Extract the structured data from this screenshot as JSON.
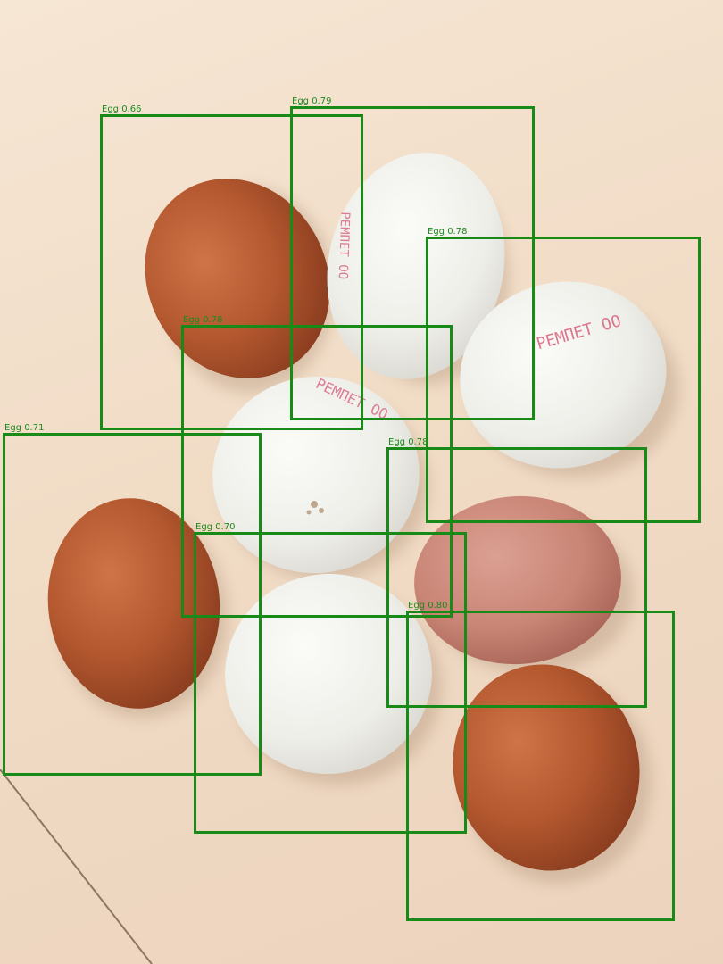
{
  "photo": {
    "subject": "eggs",
    "surface_color": "#f1dcc6"
  },
  "stamp": {
    "text": "ΡΕΜΠΕΤ ΟΟ"
  },
  "detections": [
    {
      "label": "Egg 0.66"
    },
    {
      "label": "Egg 0.79"
    },
    {
      "label": "Egg 0.78"
    },
    {
      "label": "Egg 0.78"
    },
    {
      "label": "Egg 0.71"
    },
    {
      "label": "Egg 0.78"
    },
    {
      "label": "Egg 0.70"
    },
    {
      "label": "Egg 0.80"
    }
  ],
  "colors": {
    "box": "#178a17",
    "brown_egg": "#b4582f",
    "white_egg": "#f2f2ee",
    "pink_egg": "#cf8a7a"
  }
}
